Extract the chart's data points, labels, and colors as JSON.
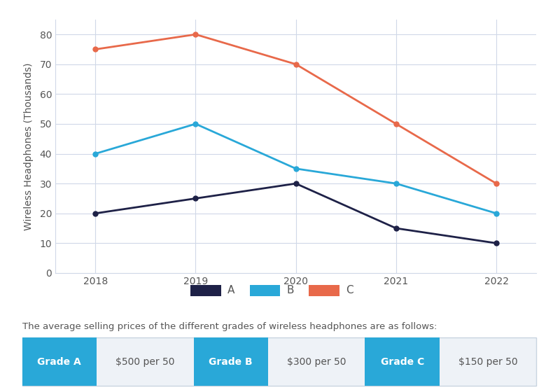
{
  "years": [
    2018,
    2019,
    2020,
    2021,
    2022
  ],
  "series_A": [
    20,
    25,
    30,
    15,
    10
  ],
  "series_B": [
    40,
    50,
    35,
    30,
    20
  ],
  "series_C": [
    75,
    80,
    70,
    50,
    30
  ],
  "color_A": "#1e2147",
  "color_B": "#29a8d8",
  "color_C": "#e8694a",
  "ylabel": "Wireless Headphones (Thousands)",
  "ylim": [
    0,
    85
  ],
  "yticks": [
    0,
    10,
    20,
    30,
    40,
    50,
    60,
    70,
    80
  ],
  "legend_labels": [
    "A",
    "B",
    "C"
  ],
  "note_text": "The average selling prices of the different grades of wireless headphones are as follows:",
  "grade_labels": [
    "Grade A",
    "Grade B",
    "Grade C"
  ],
  "grade_prices": [
    "$500 per 50",
    "$300 per 50",
    "$150 per 50"
  ],
  "button_color": "#29a8d8",
  "button_text_color": "#ffffff",
  "bg_color": "#ffffff",
  "grid_color": "#d0d8e8",
  "axis_label_color": "#555555",
  "tick_label_color": "#555555",
  "table_border_color": "#c8d4e0",
  "table_bg_color": "#eef2f7"
}
